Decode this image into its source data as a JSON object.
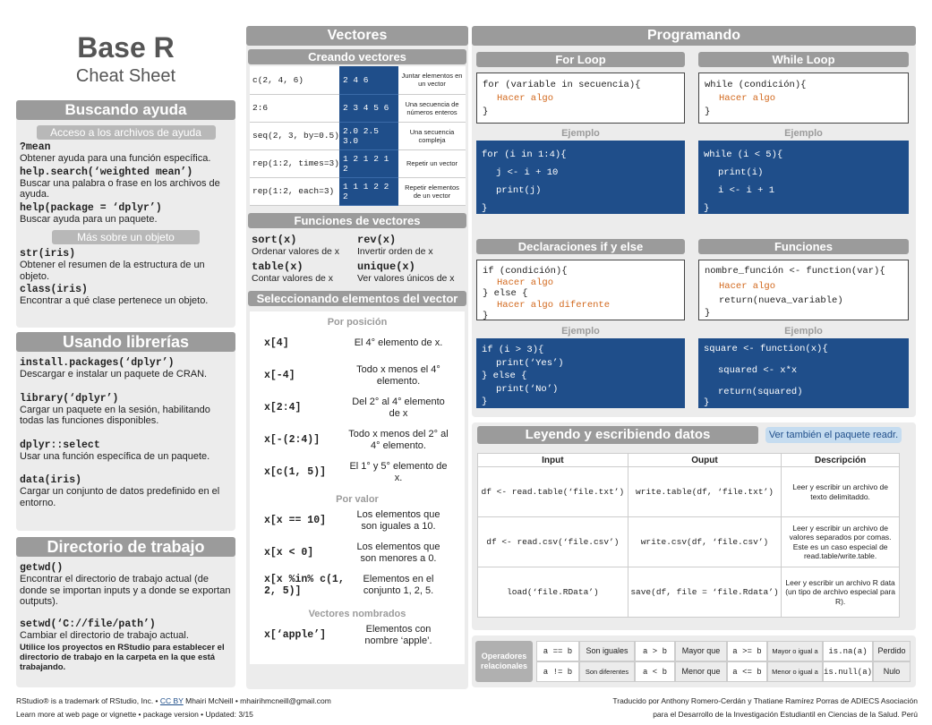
{
  "header": {
    "title": "Base R",
    "subtitle": "Cheat Sheet"
  },
  "help": {
    "banner": "Buscando ayuda",
    "tag1": "Acceso a los archivos de ayuda",
    "items": [
      {
        "code": "?mean",
        "desc": "Obtener ayuda para una función específica."
      },
      {
        "code": "help.search(‘weighted mean’)",
        "desc": "Buscar una palabra o frase en los archivos de ayuda."
      },
      {
        "code": "help(package = ‘dplyr’)",
        "desc": "Buscar ayuda para un paquete."
      }
    ],
    "tag2": "Más sobre un objeto",
    "items2": [
      {
        "code": "str(iris)",
        "desc": "Obtener el resumen de la estructura de un objeto."
      },
      {
        "code": "class(iris)",
        "desc": "Encontrar a qué clase pertenece un objeto."
      }
    ]
  },
  "libs": {
    "banner": "Usando librerías",
    "items": [
      {
        "code": "install.packages(‘dplyr’)",
        "desc": "Descargar e instalar un paquete de CRAN."
      },
      {
        "code": "library(‘dplyr’)",
        "desc": "Cargar un paquete en la sesión, habilitando todas las funciones disponibles."
      },
      {
        "code": "dplyr::select",
        "desc": "Usar una función específica de un paquete."
      },
      {
        "code": "data(iris)",
        "desc": "Cargar un conjunto de datos predefinido en el entorno."
      }
    ]
  },
  "wd": {
    "banner": "Directorio de trabajo",
    "items": [
      {
        "code": "getwd()",
        "desc": "Encontrar el directorio de trabajo actual (de donde se importan inputs y a donde se exportan outputs)."
      },
      {
        "code": "setwd(‘C://file/path’)",
        "desc": "Cambiar el directorio de trabajo actual."
      }
    ],
    "note": "Utilice los proyectos en RStudio para establecer el directorio de trabajo en la carpeta en la que está trabajando."
  },
  "vectors": {
    "banner": "Vectores",
    "create_banner": "Creando vectores",
    "create_rows": [
      {
        "code": "c(2, 4, 6)",
        "out": "2 4 6",
        "desc": "Juntar elementos en un vector"
      },
      {
        "code": "2:6",
        "out": "2 3 4 5 6",
        "desc": "Una secuencia de números enteros"
      },
      {
        "code": "seq(2, 3, by=0.5)",
        "out": "2.0 2.5 3.0",
        "desc": "Una secuencia compleja"
      },
      {
        "code": "rep(1:2, times=3)",
        "out": "1 2 1 2 1 2",
        "desc": "Repetir un vector"
      },
      {
        "code": "rep(1:2, each=3)",
        "out": "1 1 1 2 2 2",
        "desc": "Repetir elementos de un vector"
      }
    ],
    "func_banner": "Funciones de vectores",
    "funcs": [
      {
        "code": "sort(x)",
        "desc": "Ordenar valores de x"
      },
      {
        "code": "rev(x)",
        "desc": "Invertir orden de x"
      },
      {
        "code": "table(x)",
        "desc": "Contar valores de x"
      },
      {
        "code": "unique(x)",
        "desc": "Ver valores únicos de x"
      }
    ],
    "sel_banner": "Seleccionando elementos del vector",
    "pos_title": "Por posición",
    "pos": [
      {
        "code": "x[4]",
        "desc": "El 4° elemento de x."
      },
      {
        "code": "x[-4]",
        "desc": "Todo x menos el 4° elemento."
      },
      {
        "code": "x[2:4]",
        "desc": "Del 2° al 4° elemento de x"
      },
      {
        "code": "x[-(2:4)]",
        "desc": "Todo x menos del 2° al 4° elemento."
      },
      {
        "code": "x[c(1, 5)]",
        "desc": "El 1° y 5° elemento de x."
      }
    ],
    "val_title": "Por valor",
    "val": [
      {
        "code": "x[x == 10]",
        "desc": "Los elementos que son iguales a 10."
      },
      {
        "code": "x[x < 0]",
        "desc": "Los elementos que son menores a 0."
      },
      {
        "code": "x[x %in% c(1, 2, 5)]",
        "desc": "Elementos en el conjunto 1, 2, 5."
      }
    ],
    "named_title": "Vectores nombrados",
    "named": [
      {
        "code": "x[‘apple’]",
        "desc": "Elementos con nombre ‘apple’."
      }
    ]
  },
  "prog": {
    "banner": "Programando",
    "for_title": "For Loop",
    "for_code": [
      "for (variable in secuencia){",
      "Hacer algo",
      "}"
    ],
    "for_ej": [
      "for (i in 1:4){",
      "j <- i + 10",
      "print(j)",
      "}"
    ],
    "while_title": "While Loop",
    "while_code": [
      "while (condición){",
      "Hacer algo",
      "}"
    ],
    "while_ej": [
      "while (i < 5){",
      "print(i)",
      "i <- i + 1",
      "}"
    ],
    "if_title": "Declaraciones if y else",
    "if_code": [
      "if (condición){",
      "Hacer algo",
      "} else {",
      "Hacer algo diferente",
      "}"
    ],
    "if_ej": [
      "if (i > 3){",
      "print(‘Yes’)",
      "} else {",
      "print(‘No’)",
      "}"
    ],
    "fun_title": "Funciones",
    "fun_code": [
      "nombre_función <- function(var){",
      "Hacer algo",
      "return(nueva_variable)",
      "}"
    ],
    "fun_ej": [
      "square <- function(x){",
      "squared <- x*x",
      "return(squared)",
      "}"
    ],
    "ejemplo": "Ejemplo"
  },
  "io": {
    "banner": "Leyendo y escribiendo datos",
    "see_also": "Ver también el paquete readr.",
    "headers": [
      "Input",
      "Ouput",
      "Descripción"
    ],
    "rows": [
      {
        "in": "df <- read.table(‘file.txt’)",
        "out": "write.table(df, ‘file.txt’)",
        "desc": "Leer y escribir un archivo de texto delimitaddo."
      },
      {
        "in": "df <- read.csv(‘file.csv’)",
        "out": "write.csv(df, ‘file.csv’)",
        "desc": "Leer y escribir un archivo de valores separados por comas. Este es un caso especial de read.table/write.table."
      },
      {
        "in": "load(‘file.RData’)",
        "out": "save(df, file = ‘file.Rdata’)",
        "desc": "Leer y escribir un archivo R data (un tipo de archivo especial para R)."
      }
    ]
  },
  "ops": {
    "title": "Operadores relacionales",
    "cells": [
      {
        "op": "a == b",
        "lbl": "Son iguales"
      },
      {
        "op": "a > b",
        "lbl": "Mayor que"
      },
      {
        "op": "a >= b",
        "lbl": "Mayor o igual a"
      },
      {
        "op": "is.na(a)",
        "lbl": "Perdido"
      },
      {
        "op": "a != b",
        "lbl": "Son diferentes"
      },
      {
        "op": "a < b",
        "lbl": "Menor que"
      },
      {
        "op": "a <= b",
        "lbl": "Menor o igual a"
      },
      {
        "op": "is.null(a)",
        "lbl": "Nulo"
      }
    ]
  },
  "footer": {
    "left1a": "RStudio® is a trademark of RStudio, Inc. •",
    "left1link": "CC BY",
    "left1b": "Mhairi McNeill • mhairihmcneill@gmail.com",
    "left2": "Learn more at web page or vignette • package version • Updated: 3/15",
    "right1": "Traducido por Anthony Romero-Cerdán y Thatiane Ramírez Porras de ADIECS Asociación",
    "right2": "para el Desarrollo de la Investigación Estudiantil en Ciencias de la Salud. Perú"
  }
}
